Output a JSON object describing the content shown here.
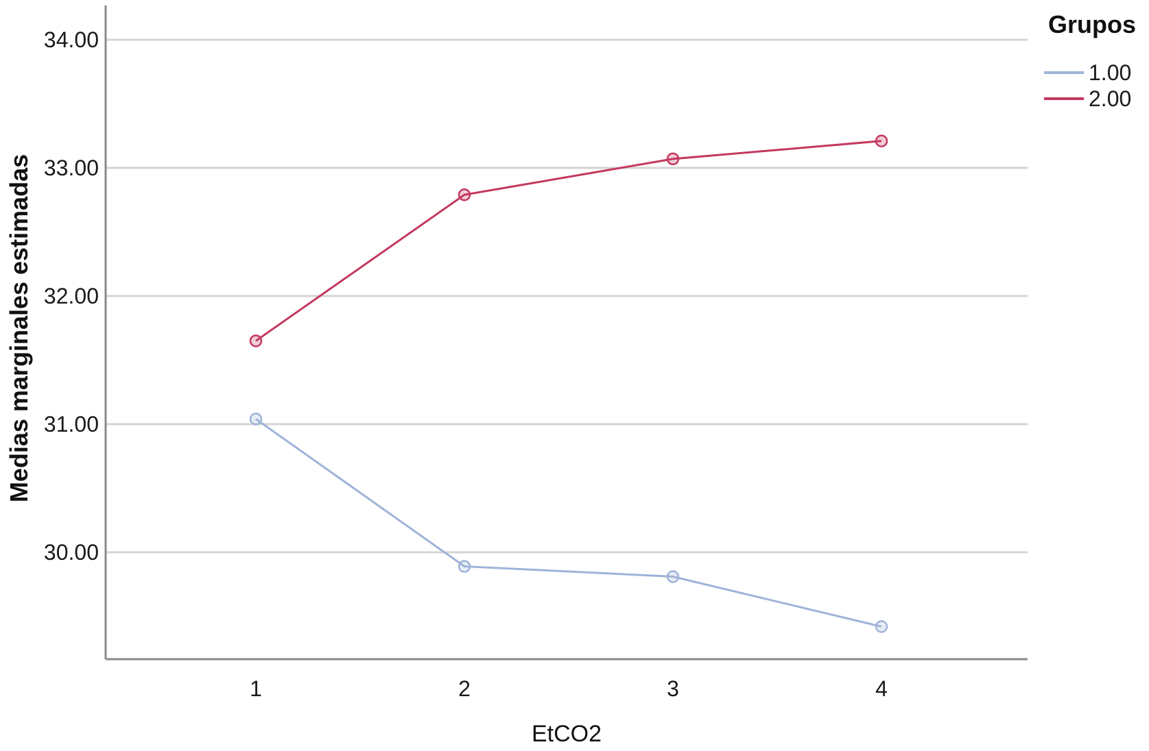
{
  "chart_data": {
    "type": "line",
    "title": "",
    "xlabel": "EtCO2",
    "ylabel": "Medias marginales estimadas",
    "categories": [
      "1",
      "2",
      "3",
      "4"
    ],
    "series": [
      {
        "name": "1.00",
        "values": [
          31.04,
          29.89,
          29.81,
          29.42
        ],
        "color": "#9fb3d9"
      },
      {
        "name": "2.00",
        "values": [
          31.65,
          32.79,
          33.07,
          33.21
        ],
        "color": "#c4385e"
      }
    ],
    "ylim": [
      29.15,
      34.25
    ],
    "yticks": [
      30.0,
      31.0,
      32.0,
      33.0,
      34.0
    ],
    "ytick_labels": [
      "30.00",
      "31.00",
      "32.00",
      "33.00",
      "34.00"
    ],
    "grid": "horizontal",
    "legend": {
      "title": "Grupos",
      "position": "top-right"
    },
    "colors": {
      "grid": "#d4d4d4",
      "axis": "#8a8a8a"
    }
  }
}
